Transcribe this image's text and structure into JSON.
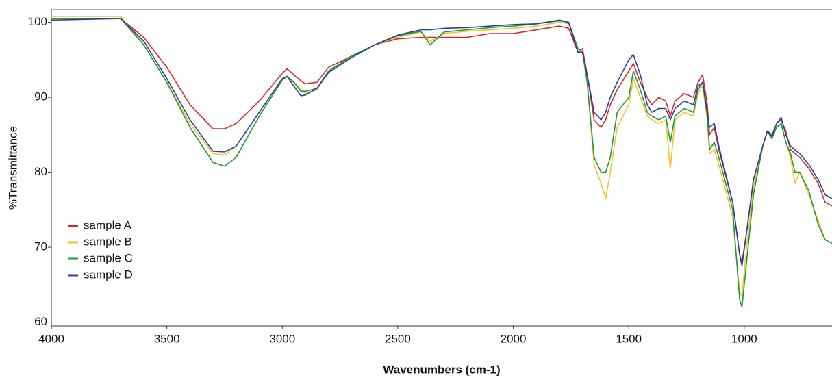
{
  "chart_data": {
    "type": "line",
    "xlabel": "Wavenumbers (cm-1)",
    "ylabel": "%Transmittance",
    "xlim": [
      4000,
      620
    ],
    "ylim": [
      59.5,
      101.7
    ],
    "xticks": [
      4000,
      3500,
      3000,
      2500,
      2000,
      1500,
      1000
    ],
    "yticks": [
      60,
      70,
      80,
      90,
      100
    ],
    "legend": "lower left",
    "x": [
      4000,
      3700,
      3600,
      3500,
      3400,
      3300,
      3250,
      3200,
      3100,
      3000,
      2980,
      2950,
      2920,
      2900,
      2850,
      2800,
      2700,
      2600,
      2500,
      2400,
      2360,
      2300,
      2200,
      2100,
      2000,
      1900,
      1800,
      1760,
      1720,
      1700,
      1680,
      1650,
      1620,
      1600,
      1580,
      1550,
      1500,
      1480,
      1450,
      1420,
      1400,
      1370,
      1340,
      1320,
      1300,
      1260,
      1220,
      1200,
      1180,
      1160,
      1150,
      1130,
      1110,
      1050,
      1020,
      1010,
      990,
      960,
      920,
      900,
      880,
      860,
      840,
      820,
      800,
      780,
      760,
      720,
      680,
      650,
      620
    ],
    "series": [
      {
        "name": "sample A",
        "color": "#d62728",
        "values": [
          100.5,
          100.5,
          98,
          94,
          89,
          85.8,
          85.8,
          86.5,
          89.5,
          93.2,
          93.8,
          93,
          92.2,
          91.8,
          92,
          94,
          95.5,
          97,
          97.8,
          98,
          98,
          98,
          98,
          98.5,
          98.5,
          99,
          99.5,
          99.2,
          96,
          96.5,
          93,
          87,
          86,
          87,
          89,
          91,
          93.5,
          94.5,
          92,
          90,
          89,
          90,
          89.5,
          87.5,
          89.5,
          90.5,
          90,
          92,
          93,
          89,
          85,
          86,
          83,
          76,
          69,
          68,
          72,
          79,
          83.5,
          85.5,
          85,
          86.5,
          87,
          85.5,
          83,
          82.5,
          82,
          80.5,
          78.5,
          76,
          75.5
        ]
      },
      {
        "name": "sample B",
        "color": "#f2c12e",
        "values": [
          100.8,
          100.8,
          97,
          92,
          86.5,
          82.5,
          82.3,
          83.5,
          88,
          92.5,
          92.8,
          92,
          91,
          90.5,
          91,
          93.5,
          95.5,
          97,
          98,
          98.7,
          97.5,
          98.5,
          98.8,
          99,
          99.2,
          99.5,
          100,
          99.8,
          96.5,
          96,
          92,
          81,
          78.5,
          76.5,
          80,
          86,
          89,
          92.5,
          90,
          87.5,
          87,
          86.5,
          87,
          80.5,
          87,
          88,
          87.5,
          90.5,
          91.5,
          87,
          82.5,
          83,
          81,
          74,
          64,
          63.5,
          70,
          78,
          83.5,
          85.5,
          84.5,
          86,
          86.5,
          84,
          82,
          78.5,
          80,
          77,
          73.5,
          71,
          70.5
        ]
      },
      {
        "name": "sample C",
        "color": "#1f9a2e",
        "values": [
          100.5,
          100.5,
          97,
          92,
          86,
          81.3,
          80.8,
          82,
          87.5,
          92.3,
          92.8,
          92,
          90.8,
          90.8,
          91.2,
          93.5,
          95.5,
          97,
          98.2,
          98.8,
          97,
          98.7,
          99,
          99.3,
          99.5,
          99.8,
          100.2,
          100,
          96.5,
          96,
          92,
          82,
          80,
          80,
          82,
          88,
          90,
          93.5,
          91,
          88,
          87.5,
          87,
          87.5,
          84,
          87.5,
          88.5,
          88,
          91,
          92,
          87.5,
          83,
          84,
          82,
          75,
          63,
          62,
          68,
          77,
          83.5,
          85.5,
          84.5,
          86,
          86.5,
          84,
          82.5,
          80,
          80,
          77.5,
          73,
          71,
          70.5
        ]
      },
      {
        "name": "sample D",
        "color": "#2b3f9e",
        "values": [
          100.3,
          100.5,
          97.5,
          92.5,
          87,
          82.8,
          82.7,
          83.5,
          88,
          92.5,
          92.8,
          91.5,
          90.2,
          90.3,
          91.2,
          93.3,
          95.3,
          97,
          98.3,
          99,
          99,
          99.2,
          99.3,
          99.5,
          99.7,
          99.8,
          100.3,
          100,
          96,
          96,
          93,
          88,
          87,
          88,
          90,
          92,
          95,
          95.7,
          93,
          89,
          88,
          88.5,
          88.5,
          87,
          88.5,
          89.5,
          89,
          91.5,
          92,
          88,
          86,
          86.5,
          83.5,
          76,
          69,
          67.5,
          72,
          79,
          83.5,
          85.5,
          84.8,
          86.5,
          87.3,
          85,
          83.5,
          83,
          82.5,
          81,
          79,
          77,
          76.5
        ]
      }
    ]
  }
}
